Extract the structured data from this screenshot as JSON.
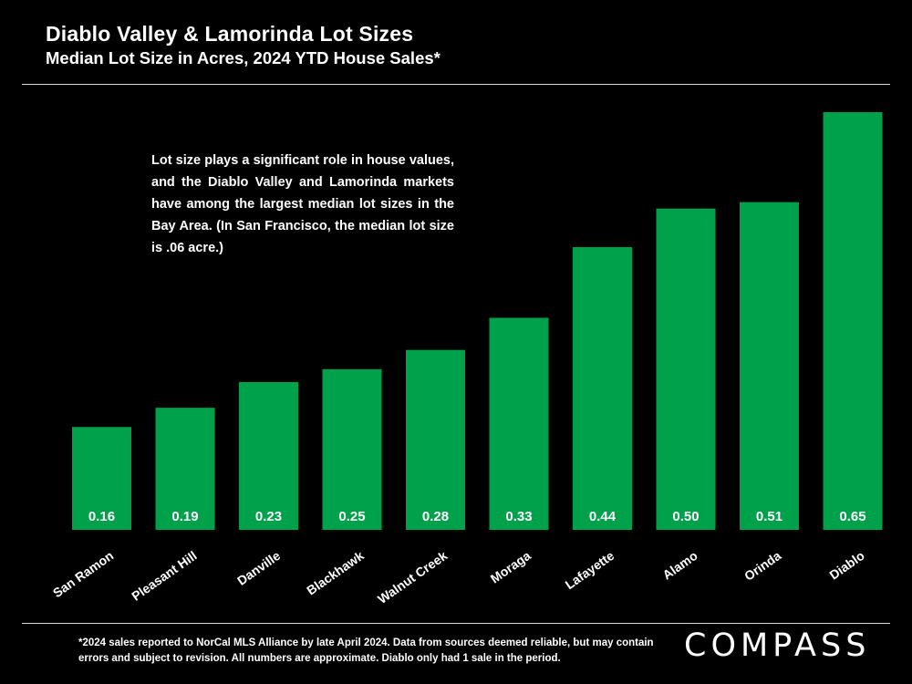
{
  "header": {
    "title": "Diablo Valley & Lamorinda Lot Sizes",
    "subtitle": "Median Lot Size in Acres, 2024 YTD House Sales*"
  },
  "annotation": "Lot size plays a significant role in house values, and the Diablo Valley and Lamorinda markets have among the largest median lot sizes in the Bay Area. (In San Francisco, the median lot size is .06 acre.)",
  "footer": {
    "note": "*2024 sales reported to NorCal MLS Alliance by late April 2024. Data from sources deemed reliable, but may contain errors and subject to revision. All numbers are approximate. Diablo only had 1 sale in the period.",
    "logo": "COMPASS"
  },
  "colors": {
    "bar": "#00a14b",
    "background": "#000000",
    "text": "#ffffff"
  },
  "chart_data": {
    "type": "bar",
    "title": "Diablo Valley & Lamorinda Lot Sizes",
    "subtitle": "Median Lot Size in Acres, 2024 YTD House Sales*",
    "xlabel": "",
    "ylabel": "",
    "categories": [
      "San Ramon",
      "Pleasant Hill",
      "Danville",
      "Blackhawk",
      "Walnut Creek",
      "Moraga",
      "Lafayette",
      "Alamo",
      "Orinda",
      "Diablo"
    ],
    "values": [
      0.16,
      0.19,
      0.23,
      0.25,
      0.28,
      0.33,
      0.44,
      0.5,
      0.51,
      0.65
    ],
    "labels": [
      "0.16",
      "0.19",
      "0.23",
      "0.25",
      "0.28",
      "0.33",
      "0.44",
      "0.50",
      "0.51",
      "0.65"
    ],
    "ylim": [
      0,
      0.65
    ],
    "grid": false,
    "legend": "none"
  }
}
